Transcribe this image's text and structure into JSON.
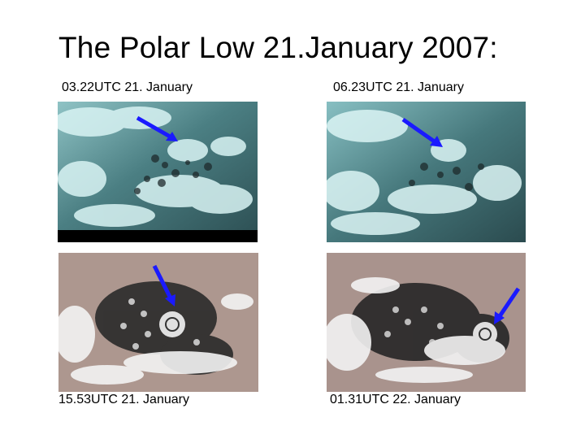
{
  "slide": {
    "title": "The Polar Low 21.January 2007:"
  },
  "panels": [
    {
      "caption": "03.22UTC 21. January",
      "palette": "cyan"
    },
    {
      "caption": "06.23UTC 21. January",
      "palette": "cyan"
    },
    {
      "caption": "15.53UTC 21. January",
      "palette": "natural"
    },
    {
      "caption": "01.31UTC 22. January",
      "palette": "natural"
    }
  ],
  "colors": {
    "arrow": "#1a1aff",
    "cyan_sea": "#2e5a5e",
    "cyan_cloud": "#d8f3f3",
    "natural_land": "#b49c94",
    "natural_sea": "#2a2a2a",
    "natural_cloud": "#f2f2f2"
  }
}
